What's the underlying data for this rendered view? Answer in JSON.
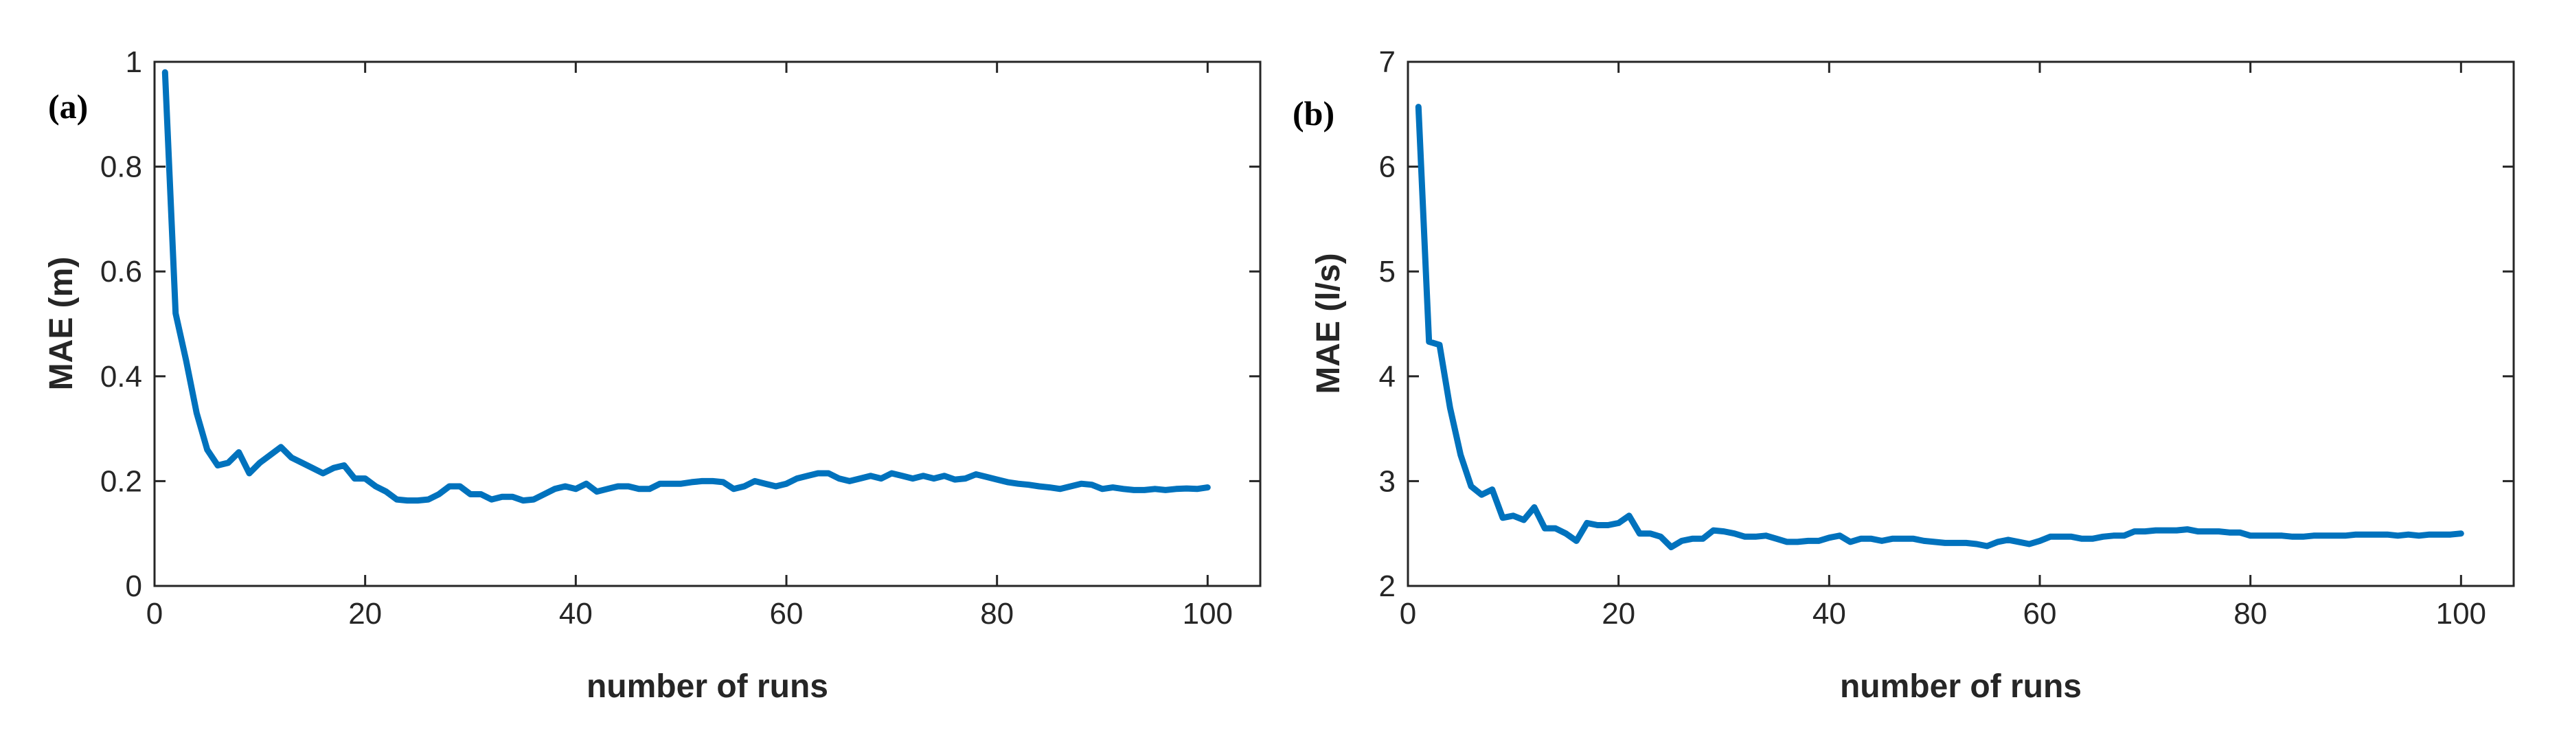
{
  "chart_data": [
    {
      "type": "line",
      "panel_label": "(a)",
      "xlabel": "number of runs",
      "ylabel": "MAE (m)",
      "xlim": [
        0,
        105
      ],
      "ylim": [
        0,
        1
      ],
      "xticks": [
        "0",
        "20",
        "40",
        "60",
        "80",
        "100"
      ],
      "yticks": [
        "0",
        "0.2",
        "0.4",
        "0.6",
        "0.8",
        "1"
      ],
      "grid": false,
      "series": [
        {
          "color": "#0072BD",
          "x": [
            1,
            2,
            3,
            4,
            5,
            6,
            7,
            8,
            9,
            10,
            11,
            12,
            13,
            14,
            15,
            16,
            17,
            18,
            19,
            20,
            21,
            22,
            23,
            24,
            25,
            26,
            27,
            28,
            29,
            30,
            31,
            32,
            33,
            34,
            35,
            36,
            37,
            38,
            39,
            40,
            41,
            42,
            43,
            44,
            45,
            46,
            47,
            48,
            49,
            50,
            51,
            52,
            53,
            54,
            55,
            56,
            57,
            58,
            59,
            60,
            61,
            62,
            63,
            64,
            65,
            66,
            67,
            68,
            69,
            70,
            71,
            72,
            73,
            74,
            75,
            76,
            77,
            78,
            79,
            80,
            81,
            82,
            83,
            84,
            85,
            86,
            87,
            88,
            89,
            90,
            91,
            92,
            93,
            94,
            95,
            96,
            97,
            98,
            99,
            100
          ],
          "values": [
            0.98,
            0.52,
            0.43,
            0.33,
            0.26,
            0.23,
            0.235,
            0.255,
            0.215,
            0.235,
            0.25,
            0.265,
            0.245,
            0.235,
            0.225,
            0.215,
            0.225,
            0.23,
            0.205,
            0.205,
            0.19,
            0.18,
            0.165,
            0.163,
            0.163,
            0.165,
            0.175,
            0.19,
            0.19,
            0.175,
            0.175,
            0.165,
            0.17,
            0.17,
            0.163,
            0.165,
            0.175,
            0.185,
            0.19,
            0.185,
            0.195,
            0.18,
            0.185,
            0.19,
            0.19,
            0.185,
            0.185,
            0.195,
            0.195,
            0.195,
            0.198,
            0.2,
            0.2,
            0.198,
            0.185,
            0.19,
            0.2,
            0.195,
            0.19,
            0.195,
            0.205,
            0.21,
            0.215,
            0.215,
            0.205,
            0.2,
            0.205,
            0.21,
            0.205,
            0.215,
            0.21,
            0.205,
            0.21,
            0.205,
            0.21,
            0.203,
            0.205,
            0.213,
            0.208,
            0.203,
            0.198,
            0.195,
            0.193,
            0.19,
            0.188,
            0.185,
            0.19,
            0.195,
            0.193,
            0.185,
            0.188,
            0.185,
            0.183,
            0.183,
            0.185,
            0.183,
            0.185,
            0.186,
            0.185,
            0.188
          ]
        }
      ]
    },
    {
      "type": "line",
      "panel_label": "(b)",
      "xlabel": "number of runs",
      "ylabel": "MAE (l/s)",
      "xlim": [
        0,
        105
      ],
      "ylim": [
        2,
        7
      ],
      "xticks": [
        "0",
        "20",
        "40",
        "60",
        "80",
        "100"
      ],
      "yticks": [
        "2",
        "3",
        "4",
        "5",
        "6",
        "7"
      ],
      "grid": false,
      "series": [
        {
          "color": "#0072BD",
          "x": [
            1,
            2,
            3,
            4,
            5,
            6,
            7,
            8,
            9,
            10,
            11,
            12,
            13,
            14,
            15,
            16,
            17,
            18,
            19,
            20,
            21,
            22,
            23,
            24,
            25,
            26,
            27,
            28,
            29,
            30,
            31,
            32,
            33,
            34,
            35,
            36,
            37,
            38,
            39,
            40,
            41,
            42,
            43,
            44,
            45,
            46,
            47,
            48,
            49,
            50,
            51,
            52,
            53,
            54,
            55,
            56,
            57,
            58,
            59,
            60,
            61,
            62,
            63,
            64,
            65,
            66,
            67,
            68,
            69,
            70,
            71,
            72,
            73,
            74,
            75,
            76,
            77,
            78,
            79,
            80,
            81,
            82,
            83,
            84,
            85,
            86,
            87,
            88,
            89,
            90,
            91,
            92,
            93,
            94,
            95,
            96,
            97,
            98,
            99,
            100
          ],
          "values": [
            6.57,
            4.33,
            4.3,
            3.7,
            3.25,
            2.95,
            2.87,
            2.92,
            2.65,
            2.67,
            2.63,
            2.75,
            2.55,
            2.55,
            2.5,
            2.43,
            2.6,
            2.58,
            2.58,
            2.6,
            2.67,
            2.5,
            2.5,
            2.47,
            2.37,
            2.43,
            2.45,
            2.45,
            2.53,
            2.52,
            2.5,
            2.47,
            2.47,
            2.48,
            2.45,
            2.42,
            2.42,
            2.43,
            2.43,
            2.46,
            2.48,
            2.42,
            2.45,
            2.45,
            2.43,
            2.45,
            2.45,
            2.45,
            2.43,
            2.42,
            2.41,
            2.41,
            2.41,
            2.4,
            2.38,
            2.42,
            2.44,
            2.42,
            2.4,
            2.43,
            2.47,
            2.47,
            2.47,
            2.45,
            2.45,
            2.47,
            2.48,
            2.48,
            2.52,
            2.52,
            2.53,
            2.53,
            2.53,
            2.54,
            2.52,
            2.52,
            2.52,
            2.51,
            2.51,
            2.48,
            2.48,
            2.48,
            2.48,
            2.47,
            2.47,
            2.48,
            2.48,
            2.48,
            2.48,
            2.49,
            2.49,
            2.49,
            2.49,
            2.48,
            2.49,
            2.48,
            2.49,
            2.49,
            2.49,
            2.5
          ]
        }
      ]
    }
  ]
}
